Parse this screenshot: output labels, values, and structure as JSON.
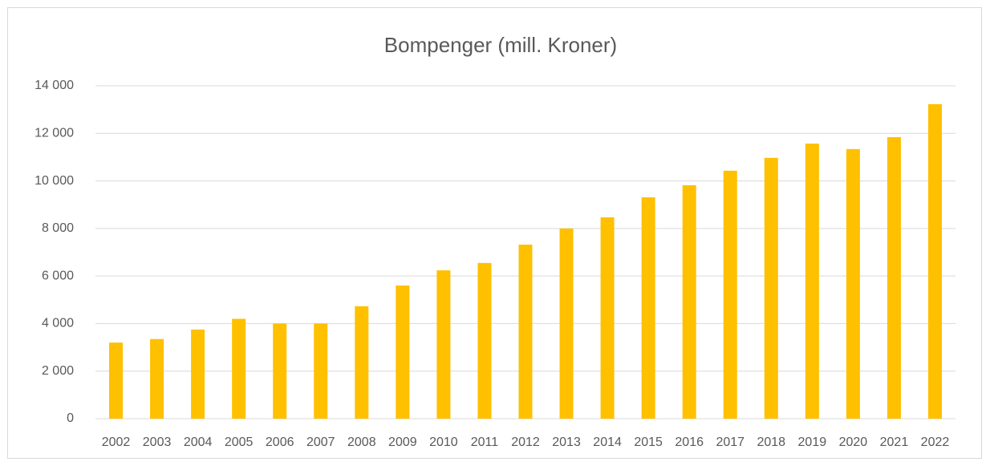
{
  "chart_data": {
    "type": "bar",
    "title": "Bompenger (mill. Kroner)",
    "categories": [
      "2002",
      "2003",
      "2004",
      "2005",
      "2006",
      "2007",
      "2008",
      "2009",
      "2010",
      "2011",
      "2012",
      "2013",
      "2014",
      "2015",
      "2016",
      "2017",
      "2018",
      "2019",
      "2020",
      "2021",
      "2022"
    ],
    "values": [
      3200,
      3350,
      3750,
      4200,
      4000,
      4000,
      4730,
      5600,
      6240,
      6550,
      7320,
      8000,
      8470,
      9310,
      9820,
      10430,
      10970,
      11570,
      11340,
      11840,
      13230
    ],
    "color": "#ffc000",
    "ylim": [
      0,
      14000
    ],
    "yticks": [
      0,
      {
        "value": 2000,
        "label": "2 000"
      },
      {
        "value": 4000,
        "label": "4 000"
      },
      {
        "value": 6000,
        "label": "6 000"
      },
      {
        "value": 8000,
        "label": "8 000"
      },
      {
        "value": 10000,
        "label": "10 000"
      },
      {
        "value": 12000,
        "label": "12 000"
      },
      {
        "value": 14000,
        "label": "14 000"
      }
    ],
    "grid": true
  }
}
